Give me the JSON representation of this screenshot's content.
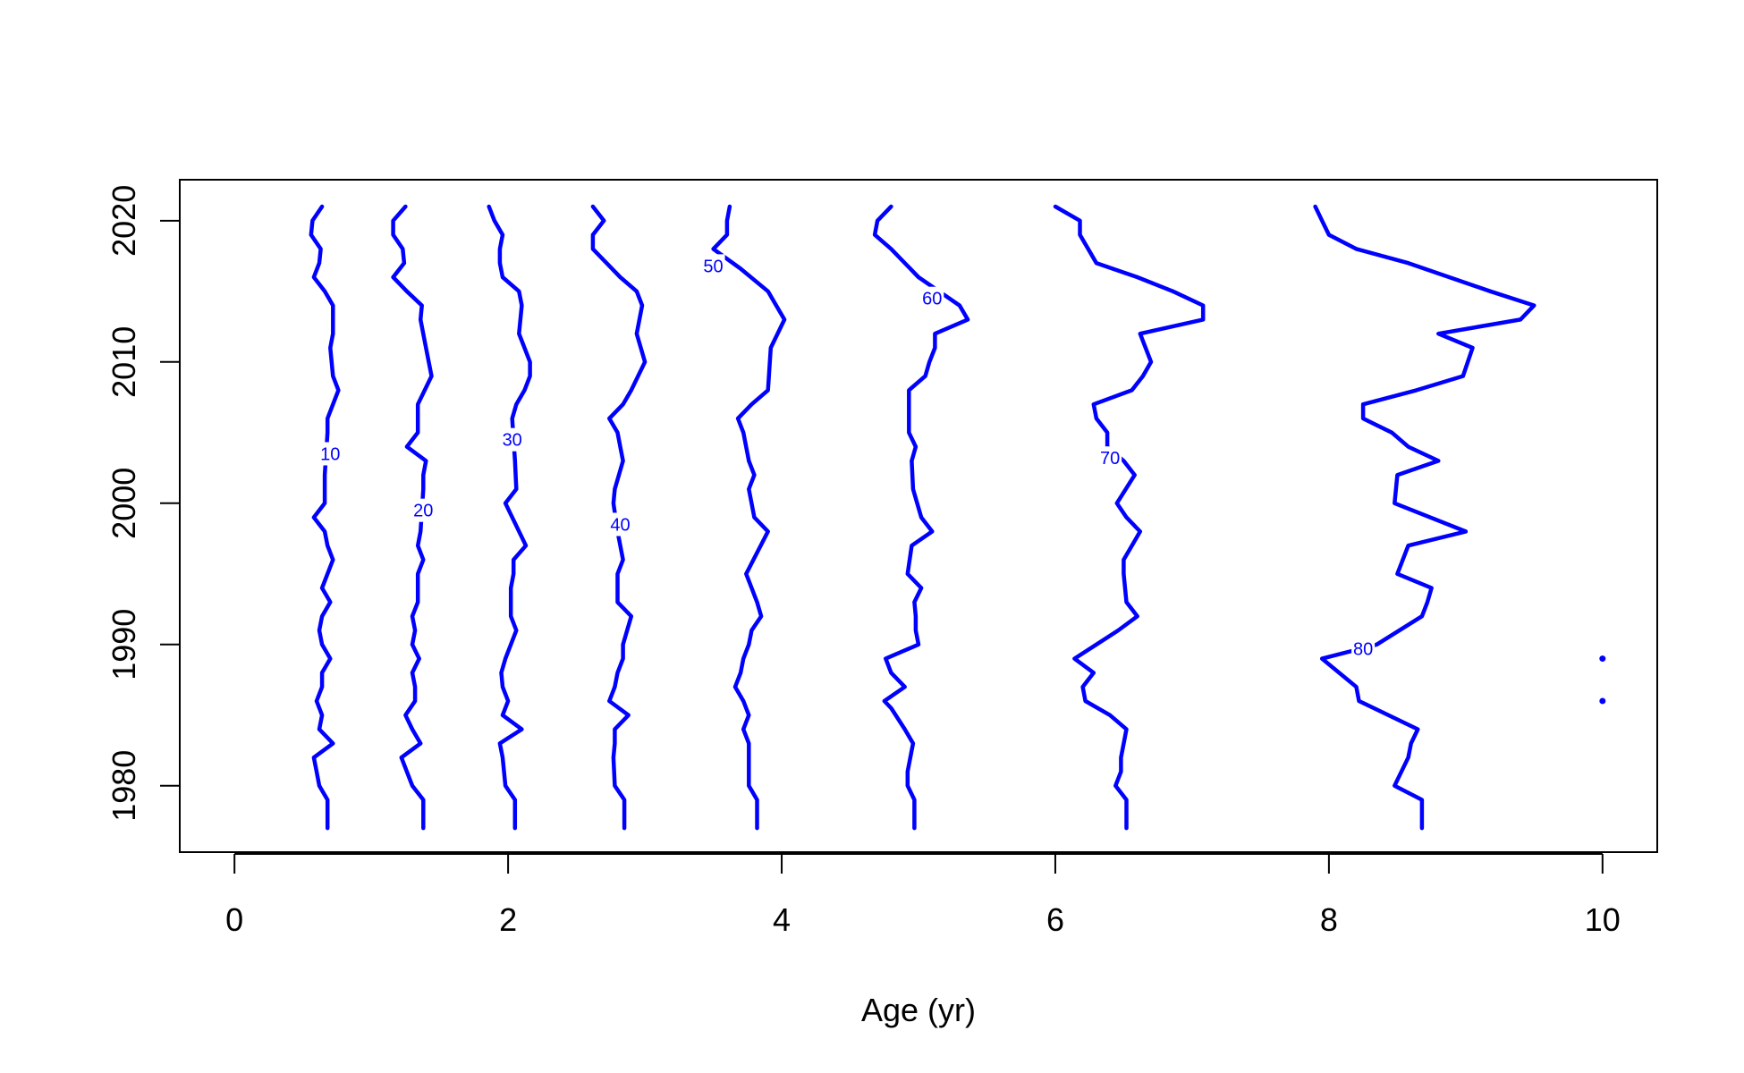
{
  "chart_data": {
    "type": "contour",
    "title": "",
    "xlabel": "Age (yr)",
    "ylabel": "",
    "xlim": [
      -0.4,
      10.4
    ],
    "ylim": [
      1975.3,
      2022.9
    ],
    "xticks": [
      0,
      2,
      4,
      6,
      8,
      10
    ],
    "yticks": [
      1980,
      1990,
      2000,
      2010,
      2020
    ],
    "line_color": "#0000FF",
    "contours": [
      {
        "level": "10",
        "label_at": [
          0.7,
          2003.5
        ],
        "points": [
          [
            0.68,
            1977
          ],
          [
            0.68,
            1979
          ],
          [
            0.62,
            1980
          ],
          [
            0.6,
            1981
          ],
          [
            0.58,
            1982
          ],
          [
            0.72,
            1983
          ],
          [
            0.62,
            1984
          ],
          [
            0.64,
            1985
          ],
          [
            0.6,
            1986
          ],
          [
            0.64,
            1987
          ],
          [
            0.64,
            1988
          ],
          [
            0.7,
            1989
          ],
          [
            0.64,
            1990
          ],
          [
            0.62,
            1991
          ],
          [
            0.64,
            1992
          ],
          [
            0.7,
            1993
          ],
          [
            0.64,
            1994
          ],
          [
            0.68,
            1995
          ],
          [
            0.72,
            1996
          ],
          [
            0.68,
            1997
          ],
          [
            0.66,
            1998
          ],
          [
            0.58,
            1999
          ],
          [
            0.66,
            2000
          ],
          [
            0.66,
            2002
          ],
          [
            0.68,
            2005
          ],
          [
            0.68,
            2006
          ],
          [
            0.76,
            2008
          ],
          [
            0.72,
            2009
          ],
          [
            0.7,
            2011
          ],
          [
            0.72,
            2012
          ],
          [
            0.72,
            2014
          ],
          [
            0.66,
            2015
          ],
          [
            0.58,
            2016
          ],
          [
            0.62,
            2017
          ],
          [
            0.63,
            2018
          ],
          [
            0.56,
            2019
          ],
          [
            0.57,
            2020
          ],
          [
            0.64,
            2021
          ]
        ]
      },
      {
        "level": "20",
        "label_at": [
          1.38,
          1999.5
        ],
        "points": [
          [
            1.38,
            1977
          ],
          [
            1.38,
            1979
          ],
          [
            1.3,
            1980
          ],
          [
            1.22,
            1982
          ],
          [
            1.36,
            1983
          ],
          [
            1.3,
            1984
          ],
          [
            1.25,
            1985
          ],
          [
            1.32,
            1986
          ],
          [
            1.32,
            1987
          ],
          [
            1.3,
            1988
          ],
          [
            1.35,
            1989
          ],
          [
            1.3,
            1990
          ],
          [
            1.32,
            1991
          ],
          [
            1.3,
            1992
          ],
          [
            1.34,
            1993
          ],
          [
            1.34,
            1995
          ],
          [
            1.38,
            1996
          ],
          [
            1.34,
            1997
          ],
          [
            1.36,
            1998
          ],
          [
            1.38,
            2001
          ],
          [
            1.38,
            2002
          ],
          [
            1.4,
            2003
          ],
          [
            1.26,
            2004
          ],
          [
            1.34,
            2005
          ],
          [
            1.34,
            2007
          ],
          [
            1.44,
            2009
          ],
          [
            1.4,
            2011
          ],
          [
            1.36,
            2013
          ],
          [
            1.37,
            2014
          ],
          [
            1.26,
            2015
          ],
          [
            1.16,
            2016
          ],
          [
            1.24,
            2017
          ],
          [
            1.23,
            2018
          ],
          [
            1.16,
            2019
          ],
          [
            1.16,
            2020
          ],
          [
            1.25,
            2021
          ]
        ]
      },
      {
        "level": "30",
        "label_at": [
          2.03,
          2004.5
        ],
        "points": [
          [
            2.05,
            1977
          ],
          [
            2.05,
            1979
          ],
          [
            1.98,
            1980
          ],
          [
            1.96,
            1982
          ],
          [
            1.94,
            1983
          ],
          [
            2.1,
            1984
          ],
          [
            1.96,
            1985
          ],
          [
            2.0,
            1986
          ],
          [
            1.96,
            1987
          ],
          [
            1.95,
            1988
          ],
          [
            1.98,
            1989
          ],
          [
            2.02,
            1990
          ],
          [
            2.06,
            1991
          ],
          [
            2.02,
            1992
          ],
          [
            2.02,
            1994
          ],
          [
            2.04,
            1995
          ],
          [
            2.04,
            1996
          ],
          [
            2.13,
            1997
          ],
          [
            1.98,
            2000
          ],
          [
            2.06,
            2001
          ],
          [
            2.05,
            2003
          ],
          [
            2.03,
            2006
          ],
          [
            2.06,
            2007
          ],
          [
            2.12,
            2008
          ],
          [
            2.16,
            2009
          ],
          [
            2.16,
            2010
          ],
          [
            2.08,
            2012
          ],
          [
            2.1,
            2014
          ],
          [
            2.08,
            2015
          ],
          [
            1.96,
            2016
          ],
          [
            1.94,
            2017
          ],
          [
            1.94,
            2018
          ],
          [
            1.96,
            2019
          ],
          [
            1.9,
            2020
          ],
          [
            1.86,
            2021
          ]
        ]
      },
      {
        "level": "40",
        "label_at": [
          2.82,
          1998.5
        ],
        "points": [
          [
            2.85,
            1977
          ],
          [
            2.85,
            1979
          ],
          [
            2.78,
            1980
          ],
          [
            2.77,
            1982
          ],
          [
            2.78,
            1983
          ],
          [
            2.78,
            1984
          ],
          [
            2.88,
            1985
          ],
          [
            2.74,
            1986
          ],
          [
            2.78,
            1987
          ],
          [
            2.8,
            1988
          ],
          [
            2.84,
            1989
          ],
          [
            2.84,
            1990
          ],
          [
            2.9,
            1992
          ],
          [
            2.8,
            1993
          ],
          [
            2.8,
            1995
          ],
          [
            2.84,
            1996
          ],
          [
            2.8,
            1998
          ],
          [
            2.77,
            2000
          ],
          [
            2.78,
            2001
          ],
          [
            2.84,
            2003
          ],
          [
            2.82,
            2004
          ],
          [
            2.8,
            2005
          ],
          [
            2.74,
            2006
          ],
          [
            2.84,
            2007
          ],
          [
            2.9,
            2008
          ],
          [
            3.0,
            2010
          ],
          [
            2.94,
            2012
          ],
          [
            2.98,
            2014
          ],
          [
            2.94,
            2015
          ],
          [
            2.82,
            2016
          ],
          [
            2.72,
            2017
          ],
          [
            2.62,
            2018
          ],
          [
            2.62,
            2019
          ],
          [
            2.7,
            2020
          ],
          [
            2.62,
            2021
          ]
        ]
      },
      {
        "level": "50",
        "label_at": [
          3.5,
          2016.8
        ],
        "points": [
          [
            3.82,
            1977
          ],
          [
            3.82,
            1979
          ],
          [
            3.76,
            1980
          ],
          [
            3.76,
            1982
          ],
          [
            3.76,
            1983
          ],
          [
            3.72,
            1984
          ],
          [
            3.76,
            1985
          ],
          [
            3.72,
            1986
          ],
          [
            3.66,
            1987
          ],
          [
            3.7,
            1988
          ],
          [
            3.72,
            1989
          ],
          [
            3.76,
            1990
          ],
          [
            3.78,
            1991
          ],
          [
            3.85,
            1992
          ],
          [
            3.82,
            1993
          ],
          [
            3.78,
            1994
          ],
          [
            3.74,
            1995
          ],
          [
            3.9,
            1998
          ],
          [
            3.8,
            1999
          ],
          [
            3.76,
            2001
          ],
          [
            3.8,
            2002
          ],
          [
            3.76,
            2003
          ],
          [
            3.72,
            2005
          ],
          [
            3.68,
            2006
          ],
          [
            3.78,
            2007
          ],
          [
            3.9,
            2008
          ],
          [
            3.92,
            2011
          ],
          [
            4.02,
            2013
          ],
          [
            3.96,
            2014
          ],
          [
            3.9,
            2015
          ],
          [
            3.7,
            2016.6
          ],
          [
            3.5,
            2018
          ],
          [
            3.6,
            2019
          ],
          [
            3.6,
            2020
          ],
          [
            3.62,
            2021
          ]
        ]
      },
      {
        "level": "60",
        "label_at": [
          5.1,
          2014.5
        ],
        "points": [
          [
            4.97,
            1977
          ],
          [
            4.97,
            1979
          ],
          [
            4.92,
            1980
          ],
          [
            4.92,
            1981
          ],
          [
            4.96,
            1983
          ],
          [
            4.9,
            1984
          ],
          [
            4.8,
            1985.5
          ],
          [
            4.75,
            1986
          ],
          [
            4.9,
            1987
          ],
          [
            4.8,
            1988
          ],
          [
            4.76,
            1989
          ],
          [
            5.0,
            1990
          ],
          [
            4.98,
            1991
          ],
          [
            4.98,
            1992
          ],
          [
            4.97,
            1993
          ],
          [
            5.02,
            1994
          ],
          [
            4.92,
            1995
          ],
          [
            4.95,
            1997
          ],
          [
            5.1,
            1998
          ],
          [
            5.02,
            1999
          ],
          [
            4.96,
            2001
          ],
          [
            4.95,
            2003
          ],
          [
            4.98,
            2004
          ],
          [
            4.93,
            2005
          ],
          [
            4.93,
            2007
          ],
          [
            4.93,
            2008
          ],
          [
            5.05,
            2009
          ],
          [
            5.08,
            2010
          ],
          [
            5.12,
            2011
          ],
          [
            5.12,
            2012
          ],
          [
            5.36,
            2013
          ],
          [
            5.3,
            2014
          ],
          [
            5.0,
            2016
          ],
          [
            4.8,
            2018
          ],
          [
            4.68,
            2019
          ],
          [
            4.7,
            2020
          ],
          [
            4.8,
            2021
          ]
        ]
      },
      {
        "level": "70",
        "label_at": [
          6.4,
          2003.2
        ],
        "points": [
          [
            6.52,
            1977
          ],
          [
            6.52,
            1979
          ],
          [
            6.44,
            1980
          ],
          [
            6.48,
            1981
          ],
          [
            6.48,
            1982
          ],
          [
            6.52,
            1984
          ],
          [
            6.4,
            1985
          ],
          [
            6.22,
            1986
          ],
          [
            6.2,
            1987
          ],
          [
            6.28,
            1988
          ],
          [
            6.14,
            1989
          ],
          [
            6.3,
            1990
          ],
          [
            6.46,
            1991
          ],
          [
            6.6,
            1992
          ],
          [
            6.52,
            1993
          ],
          [
            6.5,
            1995
          ],
          [
            6.5,
            1996
          ],
          [
            6.56,
            1997
          ],
          [
            6.62,
            1998
          ],
          [
            6.52,
            1999
          ],
          [
            6.45,
            2000
          ],
          [
            6.58,
            2002
          ],
          [
            6.5,
            2003
          ],
          [
            6.38,
            2004
          ],
          [
            6.38,
            2005
          ],
          [
            6.3,
            2006
          ],
          [
            6.28,
            2007
          ],
          [
            6.56,
            2008
          ],
          [
            6.64,
            2009
          ],
          [
            6.7,
            2010
          ],
          [
            6.62,
            2012
          ],
          [
            7.08,
            2013
          ],
          [
            7.08,
            2014
          ],
          [
            6.86,
            2015
          ],
          [
            6.6,
            2016
          ],
          [
            6.3,
            2017
          ],
          [
            6.24,
            2018
          ],
          [
            6.18,
            2019
          ],
          [
            6.18,
            2020
          ],
          [
            6.0,
            2021
          ]
        ]
      },
      {
        "level": "80",
        "label_at": [
          8.25,
          1989.7
        ],
        "points": [
          [
            8.68,
            1977
          ],
          [
            8.68,
            1979
          ],
          [
            8.48,
            1980
          ],
          [
            8.58,
            1982
          ],
          [
            8.6,
            1983
          ],
          [
            8.65,
            1984
          ],
          [
            8.22,
            1986
          ],
          [
            8.2,
            1987
          ],
          [
            7.95,
            1989
          ],
          [
            8.35,
            1990
          ],
          [
            8.68,
            1992
          ],
          [
            8.72,
            1993
          ],
          [
            8.75,
            1994
          ],
          [
            8.5,
            1995
          ],
          [
            8.58,
            1997
          ],
          [
            9.0,
            1998
          ],
          [
            8.48,
            2000
          ],
          [
            8.5,
            2002
          ],
          [
            8.8,
            2003
          ],
          [
            8.58,
            2004
          ],
          [
            8.46,
            2005
          ],
          [
            8.25,
            2006
          ],
          [
            8.25,
            2007
          ],
          [
            8.64,
            2008
          ],
          [
            8.98,
            2009
          ],
          [
            9.05,
            2011
          ],
          [
            8.8,
            2012
          ],
          [
            9.4,
            2013
          ],
          [
            9.5,
            2014
          ],
          [
            9.18,
            2015
          ],
          [
            8.58,
            2017
          ],
          [
            8.2,
            2018
          ],
          [
            8.0,
            2019
          ],
          [
            7.95,
            2020
          ],
          [
            7.9,
            2021
          ]
        ]
      }
    ],
    "points": [
      [
        10.0,
        1989
      ],
      [
        10.0,
        1986
      ]
    ]
  }
}
